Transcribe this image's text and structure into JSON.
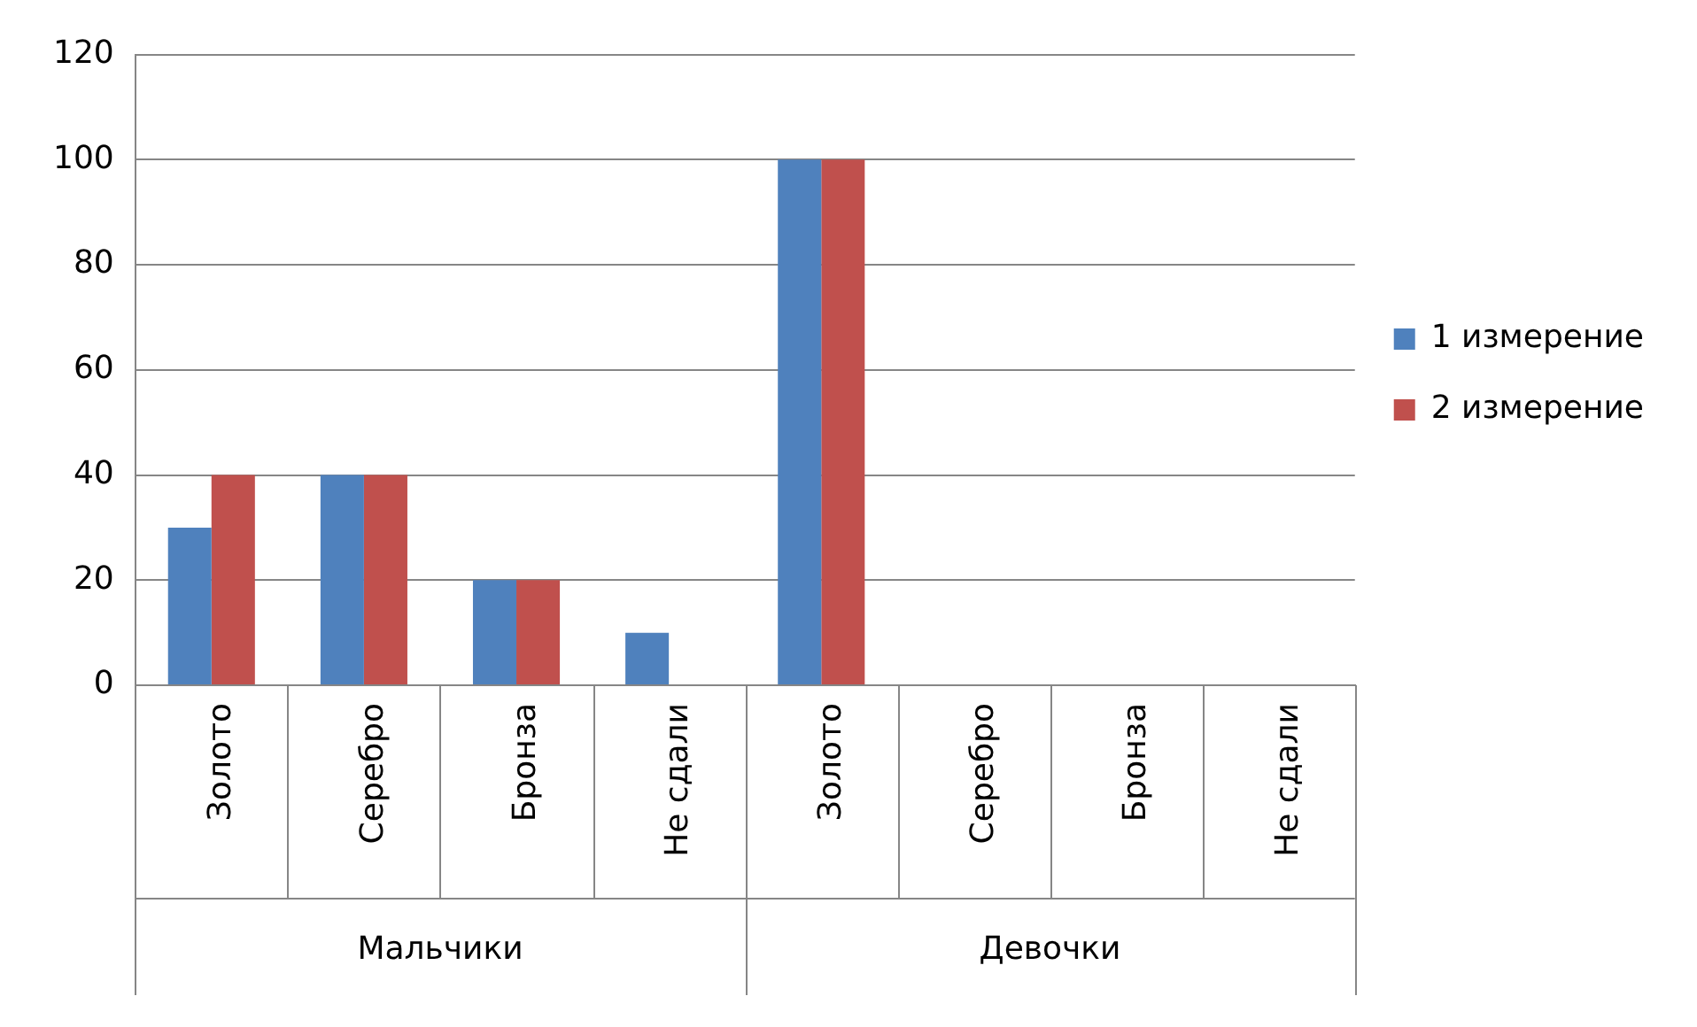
{
  "chart_data": {
    "type": "bar",
    "categories": [
      "Золото",
      "Серебро",
      "Бронза",
      "Не сдали",
      "Золото",
      "Серебро",
      "Бронза",
      "Не сдали"
    ],
    "series": [
      {
        "name": "1 измерение",
        "color": "#4f81bd",
        "values": [
          30,
          40,
          20,
          10,
          100,
          0,
          0,
          0
        ]
      },
      {
        "name": "2 измерение",
        "color": "#c0504d",
        "values": [
          40,
          40,
          20,
          0,
          100,
          0,
          0,
          0
        ]
      }
    ],
    "annotations": [
      "Мальчики",
      "Девочки"
    ],
    "ylim": [
      0,
      120
    ],
    "yticks": [
      0,
      20,
      40,
      60,
      80,
      100,
      120
    ],
    "grid": "y",
    "legend": "right"
  }
}
